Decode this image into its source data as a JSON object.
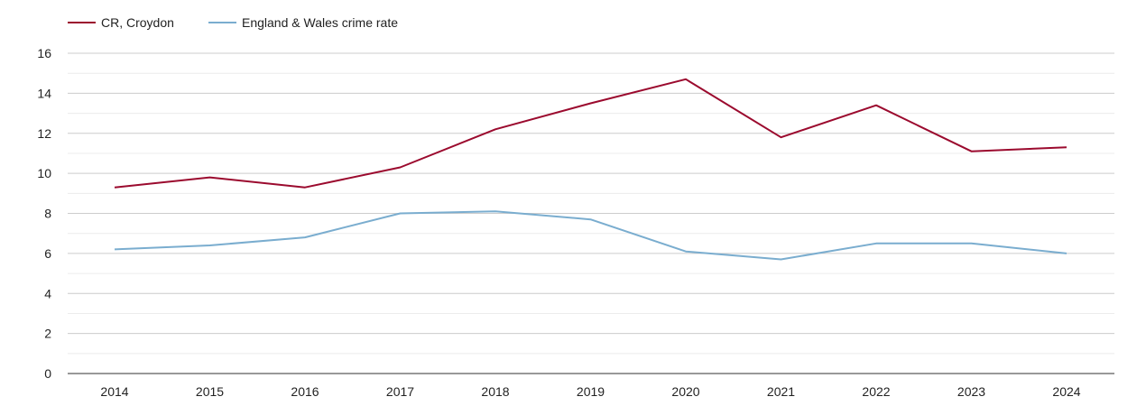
{
  "chart_data": {
    "type": "line",
    "title": "",
    "xlabel": "",
    "ylabel": "",
    "categories": [
      "2014",
      "2015",
      "2016",
      "2017",
      "2018",
      "2019",
      "2020",
      "2021",
      "2022",
      "2023",
      "2024"
    ],
    "ylim": [
      0,
      16
    ],
    "yticks": [
      "0",
      "2",
      "4",
      "6",
      "8",
      "10",
      "12",
      "14",
      "16"
    ],
    "grid": true,
    "legend_position": "top-left",
    "series": [
      {
        "name": "CR, Croydon",
        "color": "#9b0a2e",
        "values": [
          9.3,
          9.8,
          9.3,
          10.3,
          12.2,
          13.5,
          14.7,
          11.8,
          13.4,
          11.1,
          11.3
        ]
      },
      {
        "name": "England & Wales crime rate",
        "color": "#7aadcf",
        "values": [
          6.2,
          6.4,
          6.8,
          8.0,
          8.1,
          7.7,
          6.1,
          5.7,
          6.5,
          6.5,
          6.0
        ]
      }
    ]
  }
}
